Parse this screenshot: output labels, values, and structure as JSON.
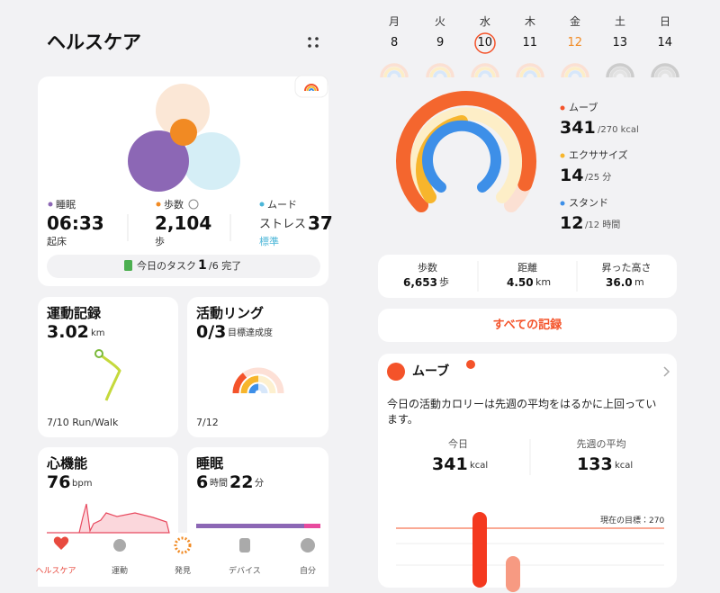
{
  "left": {
    "header": {
      "title": "ヘルスケア"
    },
    "summary": {
      "sleep": {
        "label": "睡眠",
        "value": "06:33",
        "sub": "起床"
      },
      "steps": {
        "label": "歩数",
        "value": "2,104",
        "sub": "歩"
      },
      "mood": {
        "label": "ムード",
        "prefix": "ストレス",
        "value": "37",
        "sub": "標準"
      },
      "task": {
        "label": "今日のタスク",
        "done": "1",
        "rest": "/6 完了"
      }
    },
    "cards": {
      "exercise": {
        "title": "運動記録",
        "value": "3.02",
        "unit": "km",
        "footer": "7/10 Run/Walk"
      },
      "rings": {
        "title": "活動リング",
        "value": "0/3",
        "unit": "目標達成度",
        "footer": "7/12"
      },
      "heart": {
        "title": "心機能",
        "value": "76",
        "unit": "bpm"
      },
      "sleep": {
        "title": "睡眠",
        "hours": "6",
        "hours_unit": "時間",
        "minutes": "22",
        "minutes_unit": "分"
      }
    },
    "tabs": [
      "ヘルスケア",
      "運動",
      "発見",
      "デバイス",
      "自分"
    ]
  },
  "right": {
    "week": [
      {
        "day": "月",
        "date": "8"
      },
      {
        "day": "火",
        "date": "9"
      },
      {
        "day": "水",
        "date": "10"
      },
      {
        "day": "木",
        "date": "11"
      },
      {
        "day": "金",
        "date": "12"
      },
      {
        "day": "土",
        "date": "13"
      },
      {
        "day": "日",
        "date": "14"
      }
    ],
    "goals": [
      {
        "name": "ムーブ",
        "value": "341",
        "target": "/270 kcal",
        "color": "#f4532a"
      },
      {
        "name": "エクササイズ",
        "value": "14",
        "target": "/25 分",
        "color": "#f7b52c"
      },
      {
        "name": "スタンド",
        "value": "12",
        "target": "/12 時間",
        "color": "#3d8fe8"
      }
    ],
    "stats": [
      {
        "label": "歩数",
        "value": "6,653",
        "unit": "歩"
      },
      {
        "label": "距離",
        "value": "4.50",
        "unit": "km"
      },
      {
        "label": "昇った高さ",
        "value": "36.0",
        "unit": "m"
      }
    ],
    "all_records": "すべての記録",
    "move_card": {
      "title": "ムーブ",
      "text": "今日の活動カロリーは先週の平均をはるかに上回っています。",
      "today": {
        "label": "今日",
        "value": "341",
        "unit": "kcal"
      },
      "average": {
        "label": "先週の平均",
        "value": "133",
        "unit": "kcal"
      },
      "goal_label": "現在の目標：270"
    }
  }
}
